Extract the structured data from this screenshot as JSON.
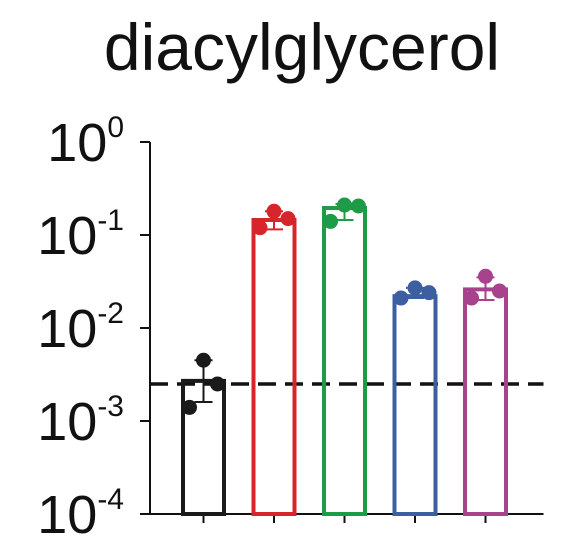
{
  "chart_data": {
    "type": "bar",
    "title": "diacylglycerol",
    "xlabel": "",
    "ylabel": "",
    "yscale": "log",
    "ylim": [
      0.0001,
      1
    ],
    "grid": false,
    "legend": "none",
    "y_ticks": [
      {
        "value": 1,
        "base": "10",
        "exp": "0"
      },
      {
        "value": 0.1,
        "base": "10",
        "exp": "-1"
      },
      {
        "value": 0.01,
        "base": "10",
        "exp": "-2"
      },
      {
        "value": 0.001,
        "base": "10",
        "exp": "-3"
      },
      {
        "value": 0.0001,
        "base": "10",
        "exp": "-4"
      }
    ],
    "reference_line": {
      "value": 0.0025,
      "style": "dashed",
      "color": "#111111"
    },
    "bars": [
      {
        "value": 0.0027,
        "color": "#1a1a1a",
        "points": [
          0.0045,
          0.0025,
          0.0014
        ],
        "error": [
          0.0016,
          0.0045
        ]
      },
      {
        "value": 0.145,
        "color": "#d6262b",
        "points": [
          0.18,
          0.15,
          0.12
        ],
        "error": [
          0.115,
          0.18
        ]
      },
      {
        "value": 0.195,
        "color": "#1e9b47",
        "points": [
          0.21,
          0.205,
          0.14
        ],
        "error": [
          0.145,
          0.215
        ]
      },
      {
        "value": 0.022,
        "color": "#3b5fa0",
        "points": [
          0.027,
          0.024,
          0.021
        ],
        "error": [
          0.021,
          0.027
        ]
      },
      {
        "value": 0.026,
        "color": "#a8428c",
        "points": [
          0.036,
          0.025,
          0.021
        ],
        "error": [
          0.02,
          0.035
        ]
      }
    ]
  }
}
